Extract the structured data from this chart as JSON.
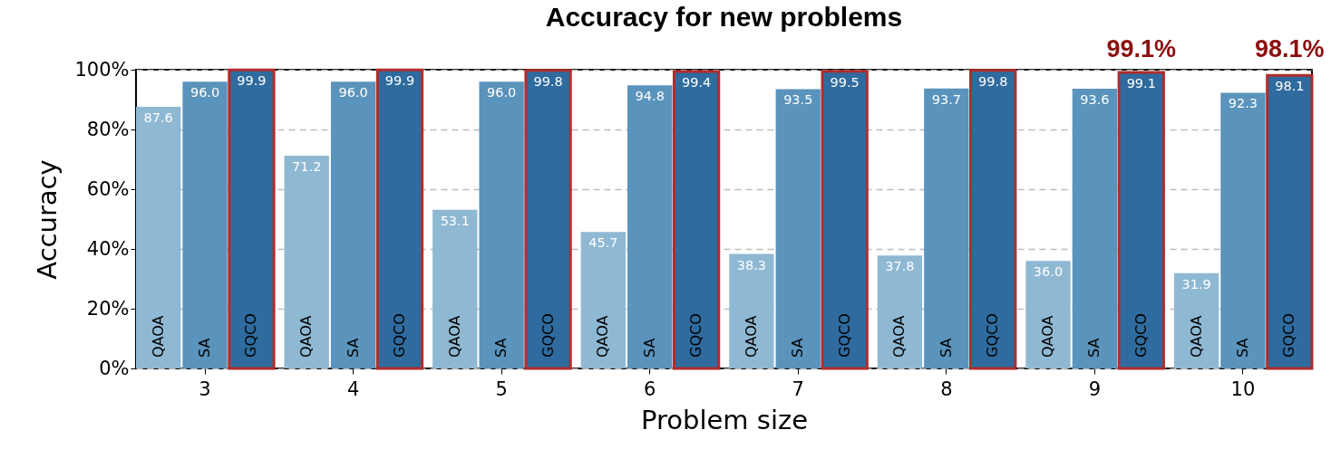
{
  "chart_data": {
    "type": "bar",
    "title": "Accuracy for new problems",
    "xlabel": "Problem size",
    "ylabel": "Accuracy",
    "categories": [
      "3",
      "4",
      "5",
      "6",
      "7",
      "8",
      "9",
      "10"
    ],
    "series": [
      {
        "name": "QAOA",
        "color": "#8fb8d3",
        "values": [
          87.6,
          71.2,
          53.1,
          45.7,
          38.3,
          37.8,
          36.0,
          31.9
        ],
        "value_labels": [
          "87.6",
          "71.2",
          "53.1",
          "45.7",
          "38.3",
          "37.8",
          "36.0",
          "31.9"
        ]
      },
      {
        "name": "SA",
        "color": "#5a93bb",
        "values": [
          96.0,
          96.0,
          96.0,
          94.8,
          93.5,
          93.7,
          93.6,
          92.3
        ],
        "value_labels": [
          "96.0",
          "96.0",
          "96.0",
          "94.8",
          "93.5",
          "93.7",
          "93.6",
          "92.3"
        ]
      },
      {
        "name": "GQCO",
        "color": "#2f6b9e",
        "values": [
          99.9,
          99.9,
          99.8,
          99.4,
          99.5,
          99.8,
          99.1,
          98.1
        ],
        "value_labels": [
          "99.9",
          "99.9",
          "99.8",
          "99.4",
          "99.5",
          "99.8",
          "99.1",
          "98.1"
        ]
      }
    ],
    "ylim": [
      0,
      100
    ],
    "yticks": [
      {
        "value": 0,
        "label": "0%"
      },
      {
        "value": 20,
        "label": "20%"
      },
      {
        "value": 40,
        "label": "40%"
      },
      {
        "value": 60,
        "label": "60%"
      },
      {
        "value": 80,
        "label": "80%"
      },
      {
        "value": 100,
        "label": "100%"
      }
    ],
    "grid": "y",
    "legend": false,
    "annotations": [
      "99.1%",
      "98.1%"
    ]
  }
}
